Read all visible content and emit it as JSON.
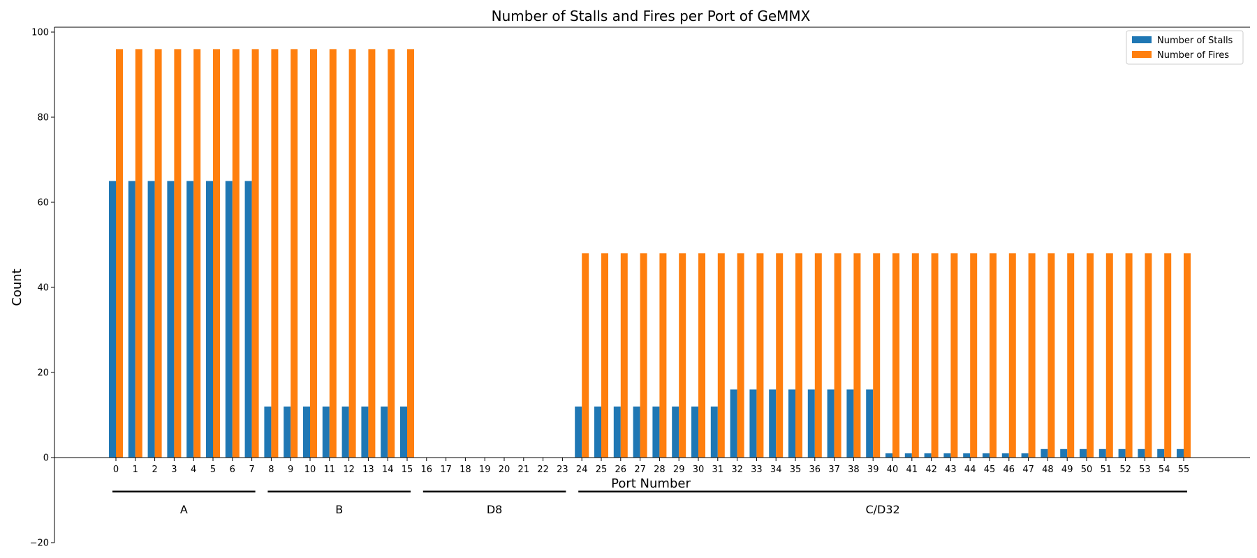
{
  "chart_data": {
    "type": "bar",
    "title": "Number of Stalls and Fires per Port of GeMMX",
    "xlabel": "Port Number",
    "ylabel": "Count",
    "ylim": [
      -20,
      101
    ],
    "yticks": [
      -20,
      0,
      20,
      40,
      60,
      80,
      100
    ],
    "grid": false,
    "legend_position": "top-right",
    "categories": [
      "0",
      "1",
      "2",
      "3",
      "4",
      "5",
      "6",
      "7",
      "8",
      "9",
      "10",
      "11",
      "12",
      "13",
      "14",
      "15",
      "16",
      "17",
      "18",
      "19",
      "20",
      "21",
      "22",
      "23",
      "24",
      "25",
      "26",
      "27",
      "28",
      "29",
      "30",
      "31",
      "32",
      "33",
      "34",
      "35",
      "36",
      "37",
      "38",
      "39",
      "40",
      "41",
      "42",
      "43",
      "44",
      "45",
      "46",
      "47",
      "48",
      "49",
      "50",
      "51",
      "52",
      "53",
      "54",
      "55"
    ],
    "series": [
      {
        "name": "Number of Stalls",
        "color": "#1f77b4",
        "values": [
          65,
          65,
          65,
          65,
          65,
          65,
          65,
          65,
          12,
          12,
          12,
          12,
          12,
          12,
          12,
          12,
          0,
          0,
          0,
          0,
          0,
          0,
          0,
          0,
          12,
          12,
          12,
          12,
          12,
          12,
          12,
          12,
          16,
          16,
          16,
          16,
          16,
          16,
          16,
          16,
          1,
          1,
          1,
          1,
          1,
          1,
          1,
          1,
          2,
          2,
          2,
          2,
          2,
          2,
          2,
          2
        ]
      },
      {
        "name": "Number of Fires",
        "color": "#ff7f0e",
        "values": [
          96,
          96,
          96,
          96,
          96,
          96,
          96,
          96,
          96,
          96,
          96,
          96,
          96,
          96,
          96,
          96,
          0,
          0,
          0,
          0,
          0,
          0,
          0,
          0,
          48,
          48,
          48,
          48,
          48,
          48,
          48,
          48,
          48,
          48,
          48,
          48,
          48,
          48,
          48,
          48,
          48,
          48,
          48,
          48,
          48,
          48,
          48,
          48,
          48,
          48,
          48,
          48,
          48,
          48,
          48,
          48
        ]
      }
    ],
    "port_groups": [
      {
        "label": "A",
        "start": 0,
        "end": 7
      },
      {
        "label": "B",
        "start": 8,
        "end": 15
      },
      {
        "label": "D8",
        "start": 16,
        "end": 23
      },
      {
        "label": "C/D32",
        "start": 24,
        "end": 55
      }
    ]
  }
}
